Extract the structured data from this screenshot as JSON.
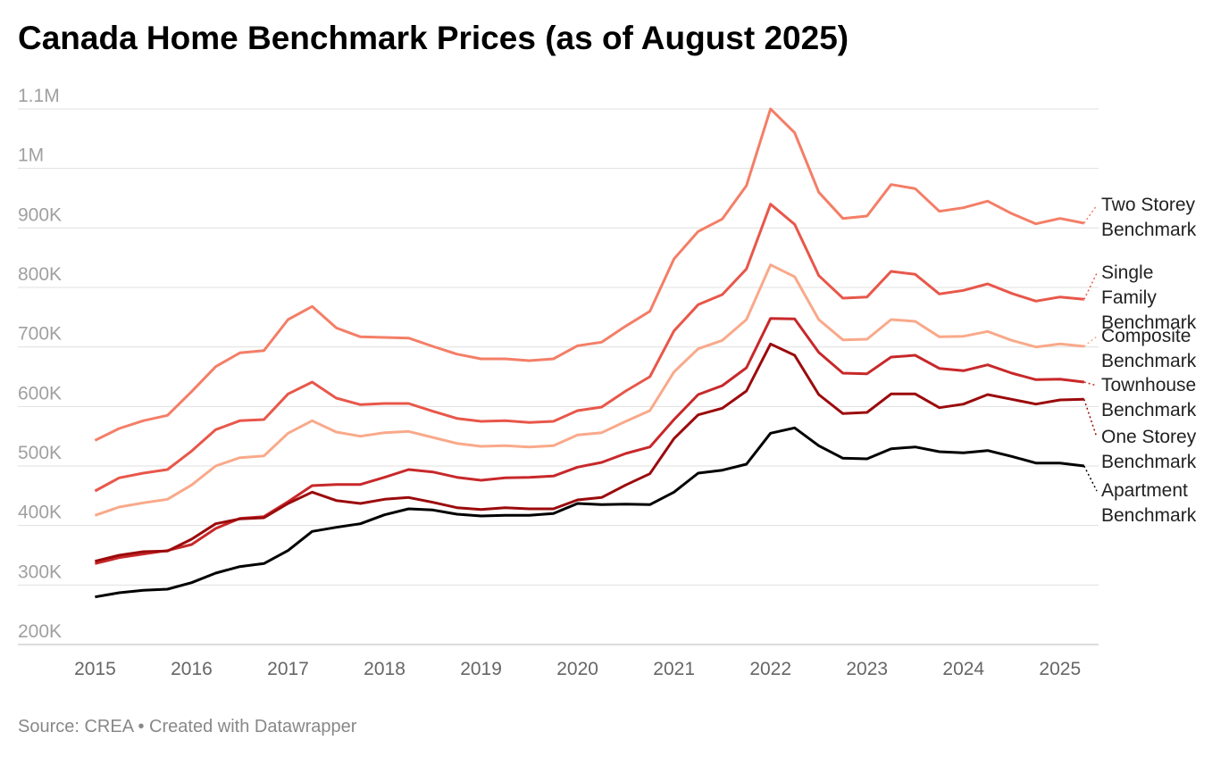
{
  "chart_data": {
    "type": "line",
    "title": "Canada Home Benchmark Prices (as of August 2025)",
    "source": "Source: CREA • Created with Datawrapper",
    "x": [
      2015,
      2015.25,
      2015.5,
      2015.75,
      2016,
      2016.25,
      2016.5,
      2016.75,
      2017,
      2017.25,
      2017.5,
      2017.75,
      2018,
      2018.25,
      2018.5,
      2018.75,
      2019,
      2019.25,
      2019.5,
      2019.75,
      2020,
      2020.25,
      2020.5,
      2020.75,
      2021,
      2021.25,
      2021.5,
      2021.75,
      2022,
      2022.25,
      2022.5,
      2022.75,
      2023,
      2023.25,
      2023.5,
      2023.75,
      2024,
      2024.25,
      2024.5,
      2024.75,
      2025,
      2025.25
    ],
    "xlim": [
      2014.2,
      2025.4
    ],
    "xticks": [
      2015,
      2016,
      2017,
      2018,
      2019,
      2020,
      2021,
      2022,
      2023,
      2024,
      2025
    ],
    "ylim": [
      200000,
      1100000
    ],
    "yticks": [
      {
        "value": 200000,
        "label": "200K"
      },
      {
        "value": 300000,
        "label": "300K"
      },
      {
        "value": 400000,
        "label": "400K"
      },
      {
        "value": 500000,
        "label": "500K"
      },
      {
        "value": 600000,
        "label": "600K"
      },
      {
        "value": 700000,
        "label": "700K"
      },
      {
        "value": 800000,
        "label": "800K"
      },
      {
        "value": 900000,
        "label": "900K"
      },
      {
        "value": 1000000,
        "label": "1M"
      },
      {
        "value": 1100000,
        "label": "1.1M"
      }
    ],
    "grid": true,
    "series": [
      {
        "name": "Two Storey Benchmark",
        "color": "#f47e67",
        "values": [
          543000,
          563000,
          576000,
          585000,
          625000,
          667000,
          690000,
          694000,
          746000,
          768000,
          732000,
          717000,
          716000,
          715000,
          701000,
          688000,
          680000,
          680000,
          677000,
          680000,
          702000,
          708000,
          735000,
          760000,
          848000,
          894000,
          915000,
          971000,
          1100000,
          1060000,
          960000,
          916000,
          920000,
          973000,
          966000,
          928000,
          934000,
          945000,
          924000,
          907000,
          916000,
          908000
        ]
      },
      {
        "name": "Single Family Benchmark",
        "color": "#e8574a",
        "values": [
          458000,
          480000,
          488000,
          494000,
          525000,
          561000,
          576000,
          578000,
          621000,
          641000,
          614000,
          603000,
          605000,
          605000,
          592000,
          580000,
          575000,
          576000,
          573000,
          575000,
          593000,
          599000,
          626000,
          650000,
          727000,
          771000,
          788000,
          831000,
          940000,
          906000,
          820000,
          782000,
          784000,
          827000,
          822000,
          789000,
          795000,
          806000,
          790000,
          777000,
          784000,
          780000
        ]
      },
      {
        "name": "Composite Benchmark",
        "color": "#f9a98a",
        "values": [
          417000,
          431000,
          438000,
          444000,
          468000,
          500000,
          514000,
          517000,
          555000,
          576000,
          557000,
          550000,
          556000,
          558000,
          548000,
          538000,
          533000,
          534000,
          532000,
          534000,
          552000,
          556000,
          575000,
          593000,
          658000,
          697000,
          711000,
          746000,
          838000,
          818000,
          746000,
          712000,
          713000,
          746000,
          743000,
          717000,
          718000,
          726000,
          711000,
          700000,
          705000,
          701000
        ]
      },
      {
        "name": "Townhouse Benchmark",
        "color": "#c8282a",
        "values": [
          336000,
          346000,
          352000,
          358000,
          368000,
          395000,
          412000,
          415000,
          440000,
          467000,
          469000,
          469000,
          481000,
          494000,
          490000,
          481000,
          476000,
          480000,
          481000,
          483000,
          498000,
          506000,
          521000,
          532000,
          578000,
          620000,
          635000,
          665000,
          748000,
          747000,
          691000,
          656000,
          655000,
          683000,
          686000,
          664000,
          660000,
          670000,
          656000,
          645000,
          646000,
          641000
        ]
      },
      {
        "name": "One Storey Benchmark",
        "color": "#9b0a0c",
        "values": [
          340000,
          350000,
          356000,
          357000,
          377000,
          403000,
          411000,
          413000,
          437000,
          456000,
          442000,
          437000,
          444000,
          447000,
          439000,
          430000,
          427000,
          430000,
          428000,
          428000,
          443000,
          447000,
          468000,
          487000,
          546000,
          586000,
          597000,
          626000,
          705000,
          686000,
          620000,
          588000,
          590000,
          621000,
          621000,
          598000,
          604000,
          620000,
          612000,
          604000,
          611000,
          612000
        ]
      },
      {
        "name": "Apartment Benchmark",
        "color": "#000000",
        "values": [
          280000,
          287000,
          291000,
          293000,
          304000,
          320000,
          331000,
          336000,
          358000,
          390000,
          397000,
          403000,
          418000,
          428000,
          426000,
          419000,
          416000,
          417000,
          417000,
          420000,
          437000,
          435000,
          436000,
          435000,
          456000,
          488000,
          493000,
          503000,
          555000,
          564000,
          534000,
          513000,
          512000,
          529000,
          532000,
          524000,
          522000,
          526000,
          516000,
          505000,
          505000,
          500000
        ]
      }
    ]
  }
}
